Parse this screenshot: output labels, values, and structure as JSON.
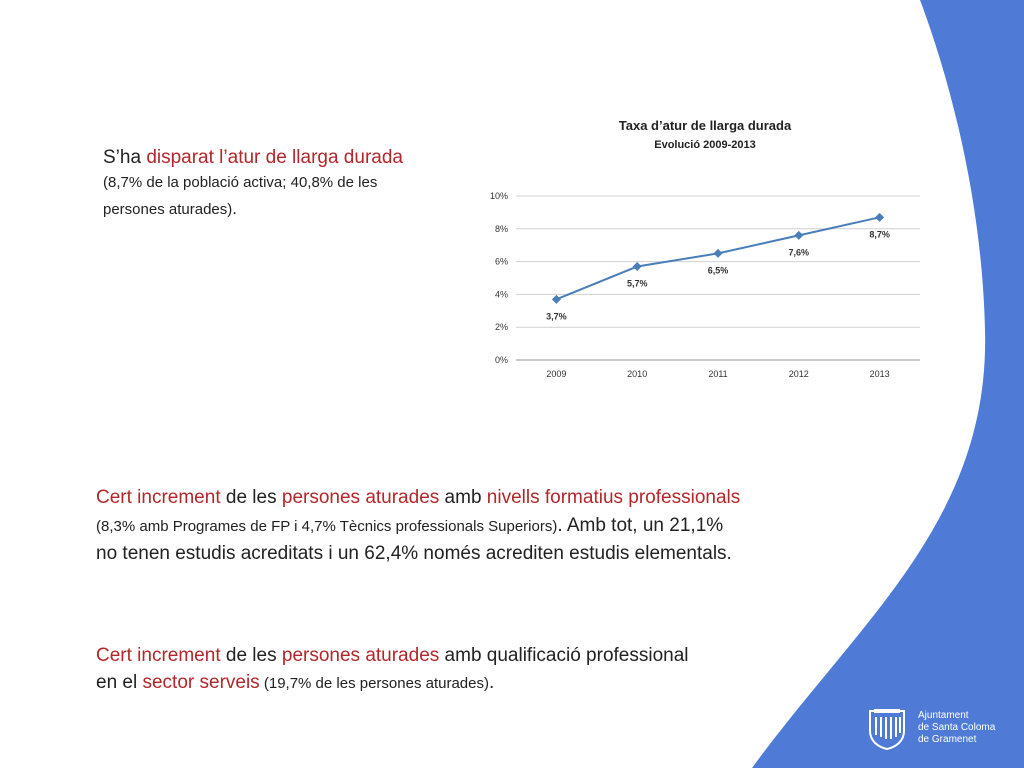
{
  "colors": {
    "accent_blue": "#4f7bd6",
    "highlight_red": "#b3262a",
    "series_blue": "#4a7ebb"
  },
  "top_text": {
    "prefix": "S’ha ",
    "red": "disparat l’atur de llarga durada",
    "detail": "(8,7% de la població activa; 40,8% de les persones aturades)",
    "end": "."
  },
  "paragraph2": {
    "red1": "Cert increment",
    "t1": " de les ",
    "red2": "persones aturades",
    "t2": " amb ",
    "red3": "nivells formatius professionals",
    "detail": " (8,3% amb Programes de FP i 4,7% Tècnics professionals Superiors)",
    "t3": ". Amb tot, un 21,1% no tenen estudis acreditats i un 62,4% només acrediten estudis elementals."
  },
  "paragraph3": {
    "red1": "Cert increment",
    "t1": " de les ",
    "red2": "persones aturades",
    "t2": " amb qualificació professional en el ",
    "red3": "sector serveis",
    "detail": " (19,7% de les persones aturades)",
    "t3": "."
  },
  "logo": {
    "line1": "Ajuntament",
    "line2": "de Santa Coloma",
    "line3": "de Gramenet",
    "icon": "municipal-shield-icon"
  },
  "chart_data": {
    "type": "line",
    "title": "Taxa d’atur de llarga durada",
    "subtitle": "Evolució 2009-2013",
    "categories": [
      "2009",
      "2010",
      "2011",
      "2012",
      "2013"
    ],
    "values": [
      3.7,
      5.7,
      6.5,
      7.6,
      8.7
    ],
    "data_labels": [
      "3,7%",
      "5,7%",
      "6,5%",
      "7,6%",
      "8,7%"
    ],
    "yticks": [
      "0%",
      "2%",
      "4%",
      "6%",
      "8%",
      "10%"
    ],
    "ylim": [
      0,
      10
    ],
    "grid": true,
    "marker": "diamond"
  }
}
